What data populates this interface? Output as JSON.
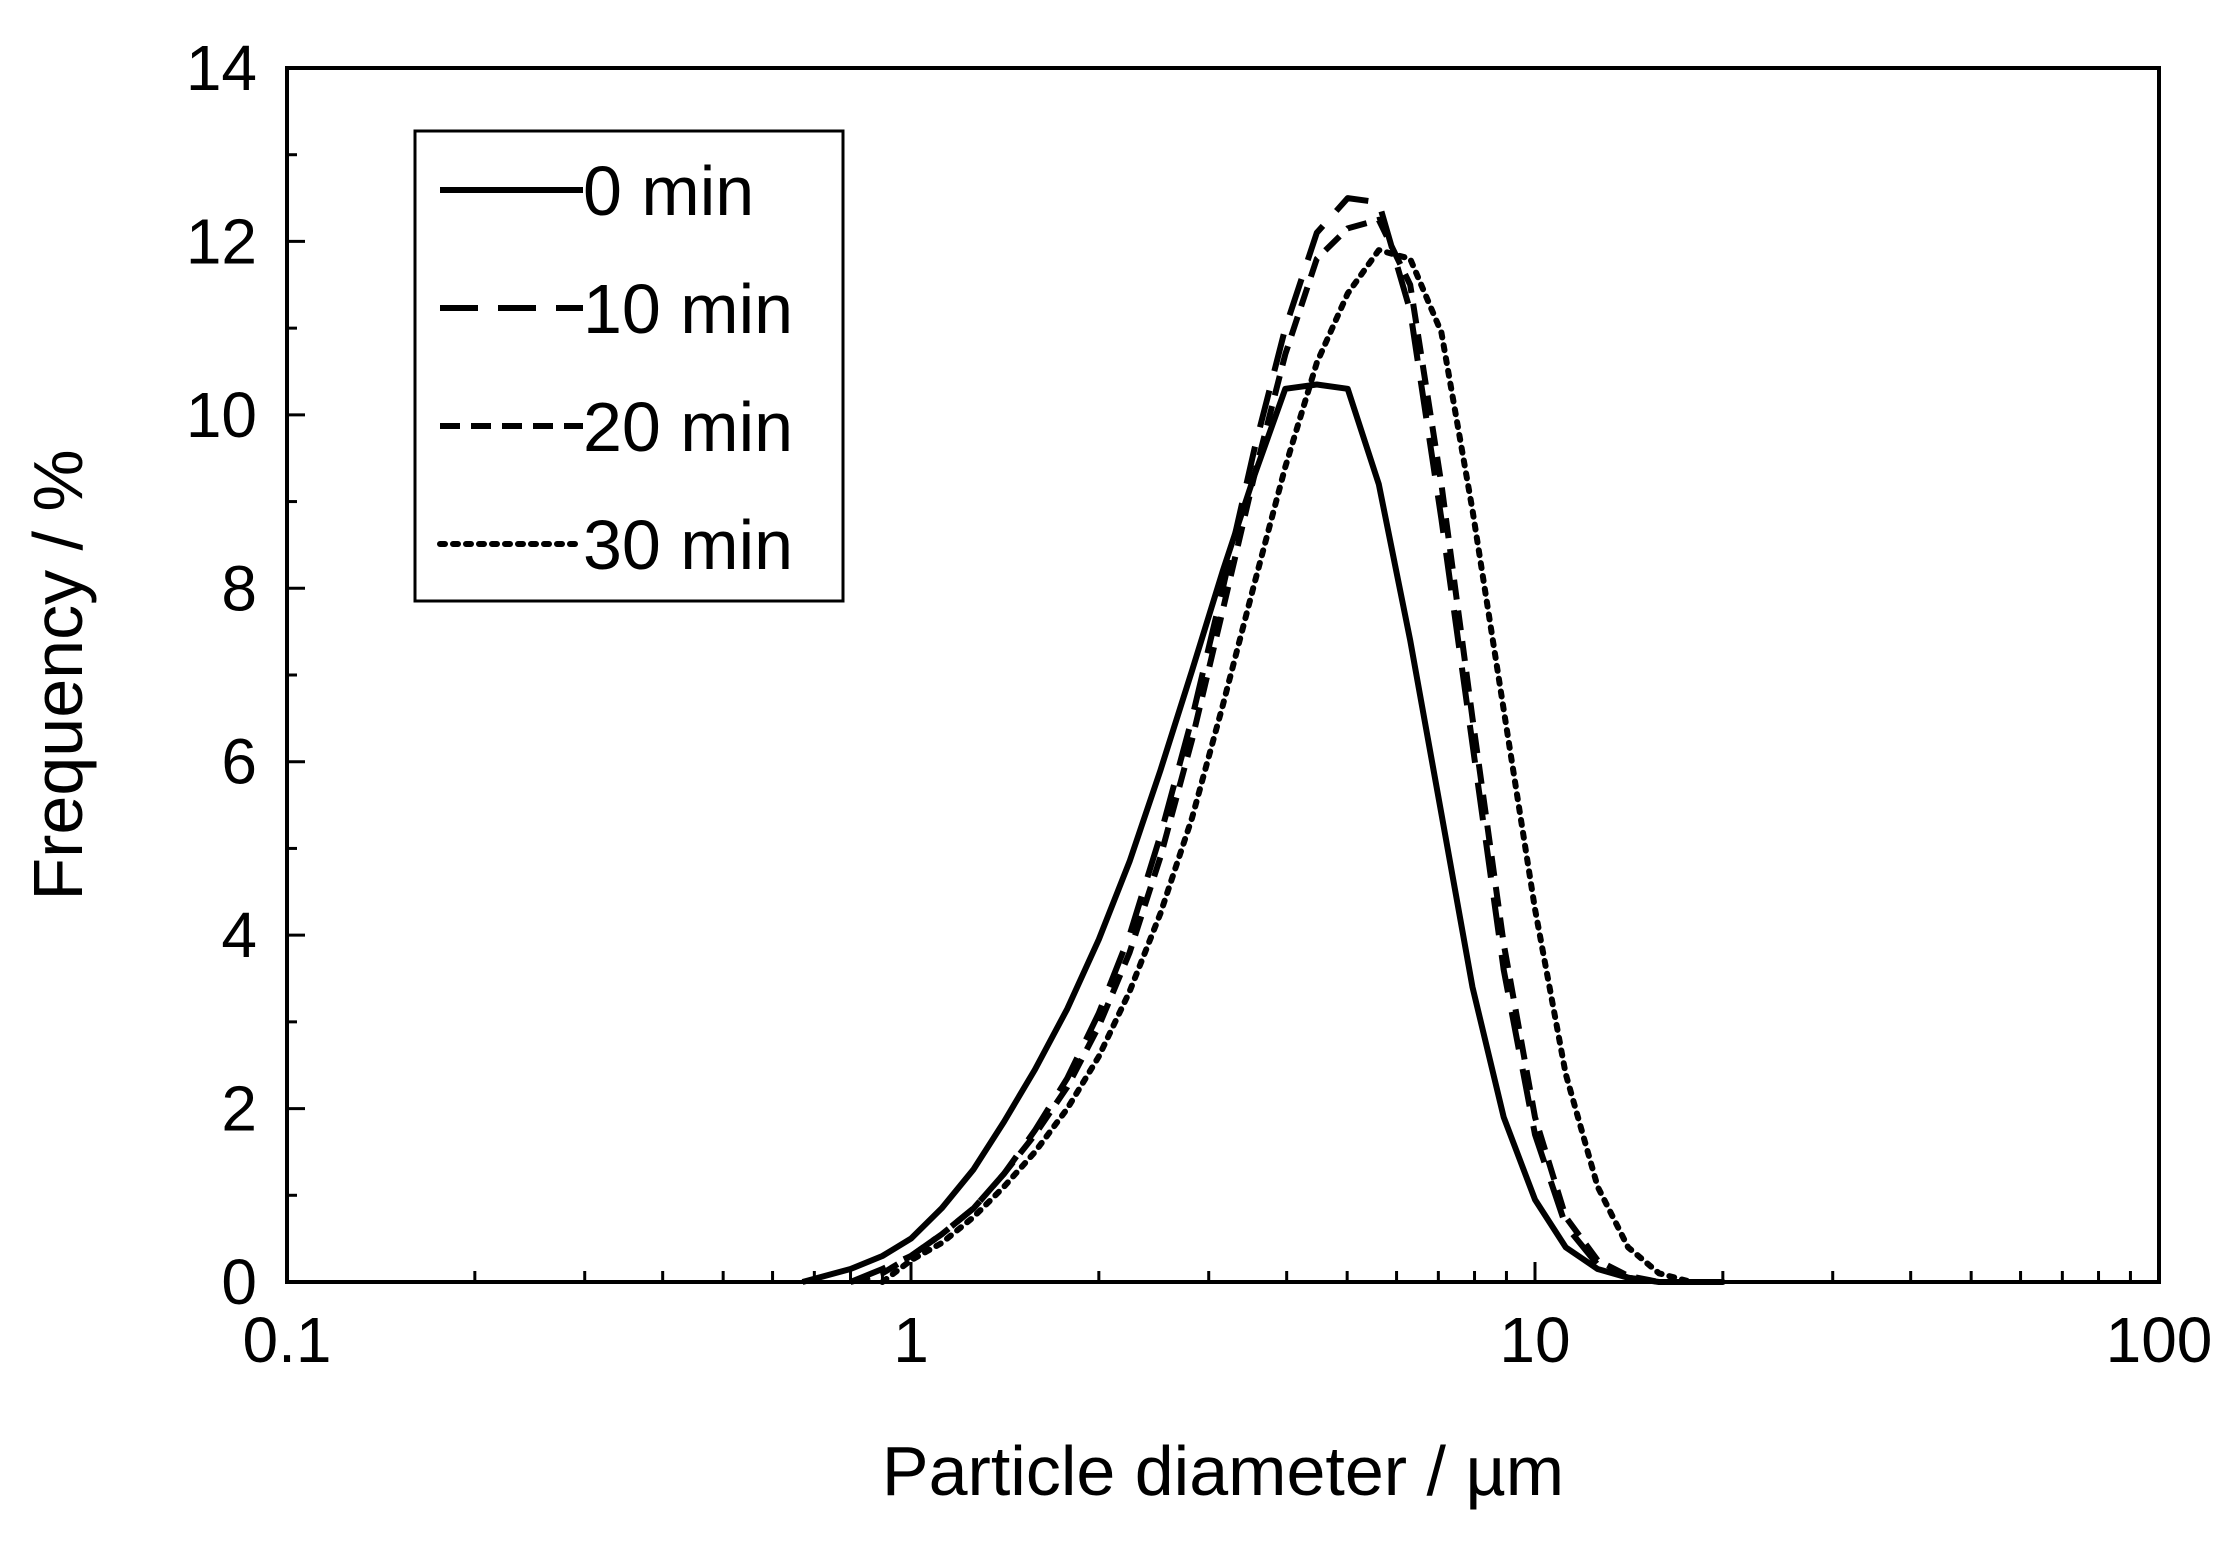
{
  "chart_data": {
    "type": "line",
    "xlabel": "Particle diameter / µm",
    "ylabel": "Frequency / %",
    "xscale": "log",
    "xlim": [
      0.1,
      100
    ],
    "ylim": [
      0,
      14
    ],
    "x_ticks": [
      0.1,
      1,
      10,
      100
    ],
    "x_tick_labels": [
      "0.1",
      "1",
      "10",
      "100"
    ],
    "y_ticks": [
      0,
      2,
      4,
      6,
      8,
      10,
      12,
      14
    ],
    "y_tick_labels": [
      "0",
      "2",
      "4",
      "6",
      "8",
      "10",
      "12",
      "14"
    ],
    "grid": false,
    "legend_position": "top-left",
    "series": [
      {
        "name": "0 min",
        "line_style": "solid",
        "x": [
          0.67,
          0.8,
          0.9,
          1.0,
          1.12,
          1.26,
          1.41,
          1.58,
          1.78,
          2.0,
          2.24,
          2.51,
          2.82,
          3.16,
          3.55,
          3.98,
          4.47,
          5.01,
          5.62,
          6.31,
          7.08,
          7.94,
          8.91,
          10.0,
          11.2,
          12.6,
          14.1,
          15.8,
          17.8,
          20.0
        ],
        "y": [
          0.0,
          0.15,
          0.3,
          0.5,
          0.85,
          1.3,
          1.85,
          2.45,
          3.15,
          3.95,
          4.85,
          5.9,
          7.05,
          8.2,
          9.3,
          10.3,
          10.35,
          10.3,
          9.2,
          7.4,
          5.4,
          3.4,
          1.9,
          0.95,
          0.4,
          0.15,
          0.05,
          0.0,
          0.0,
          0.0
        ]
      },
      {
        "name": "10 min",
        "line_style": "dashed",
        "x": [
          0.8,
          0.9,
          1.0,
          1.12,
          1.26,
          1.41,
          1.58,
          1.78,
          2.0,
          2.24,
          2.51,
          2.82,
          3.16,
          3.55,
          3.98,
          4.47,
          5.01,
          5.62,
          6.31,
          7.08,
          7.94,
          8.91,
          10.0,
          11.2,
          12.6,
          14.1,
          15.8,
          17.8,
          20.0
        ],
        "y": [
          0.0,
          0.15,
          0.3,
          0.55,
          0.85,
          1.25,
          1.75,
          2.35,
          3.1,
          4.0,
          5.15,
          6.5,
          8.0,
          9.6,
          11.0,
          12.1,
          12.5,
          12.45,
          11.2,
          8.8,
          6.2,
          3.6,
          1.7,
          0.65,
          0.2,
          0.05,
          0.0,
          0.0,
          0.0
        ]
      },
      {
        "name": "20 min",
        "line_style": "short-dashed",
        "x": [
          0.8,
          0.9,
          1.0,
          1.12,
          1.26,
          1.41,
          1.58,
          1.78,
          2.0,
          2.24,
          2.51,
          2.82,
          3.16,
          3.55,
          3.98,
          4.47,
          5.01,
          5.62,
          6.31,
          7.08,
          7.94,
          8.91,
          10.0,
          11.2,
          12.6,
          14.1,
          15.8,
          17.8,
          20.0
        ],
        "y": [
          0.0,
          0.1,
          0.3,
          0.55,
          0.85,
          1.25,
          1.7,
          2.25,
          2.95,
          3.8,
          4.9,
          6.25,
          7.75,
          9.3,
          10.7,
          11.8,
          12.15,
          12.25,
          11.5,
          9.2,
          6.5,
          3.9,
          1.9,
          0.75,
          0.25,
          0.07,
          0.0,
          0.0,
          0.0
        ]
      },
      {
        "name": "30 min",
        "line_style": "dotted",
        "x": [
          0.9,
          1.0,
          1.12,
          1.26,
          1.41,
          1.58,
          1.78,
          2.0,
          2.24,
          2.51,
          2.82,
          3.16,
          3.55,
          3.98,
          4.47,
          5.01,
          5.62,
          6.31,
          7.08,
          7.94,
          8.91,
          10.0,
          11.2,
          12.6,
          14.1,
          15.8,
          17.8,
          20.0
        ],
        "y": [
          0.0,
          0.25,
          0.45,
          0.75,
          1.1,
          1.5,
          2.0,
          2.6,
          3.35,
          4.25,
          5.35,
          6.65,
          8.05,
          9.4,
          10.6,
          11.4,
          11.9,
          11.8,
          10.95,
          8.9,
          6.6,
          4.3,
          2.4,
          1.1,
          0.4,
          0.1,
          0.0,
          0.0
        ]
      }
    ]
  }
}
